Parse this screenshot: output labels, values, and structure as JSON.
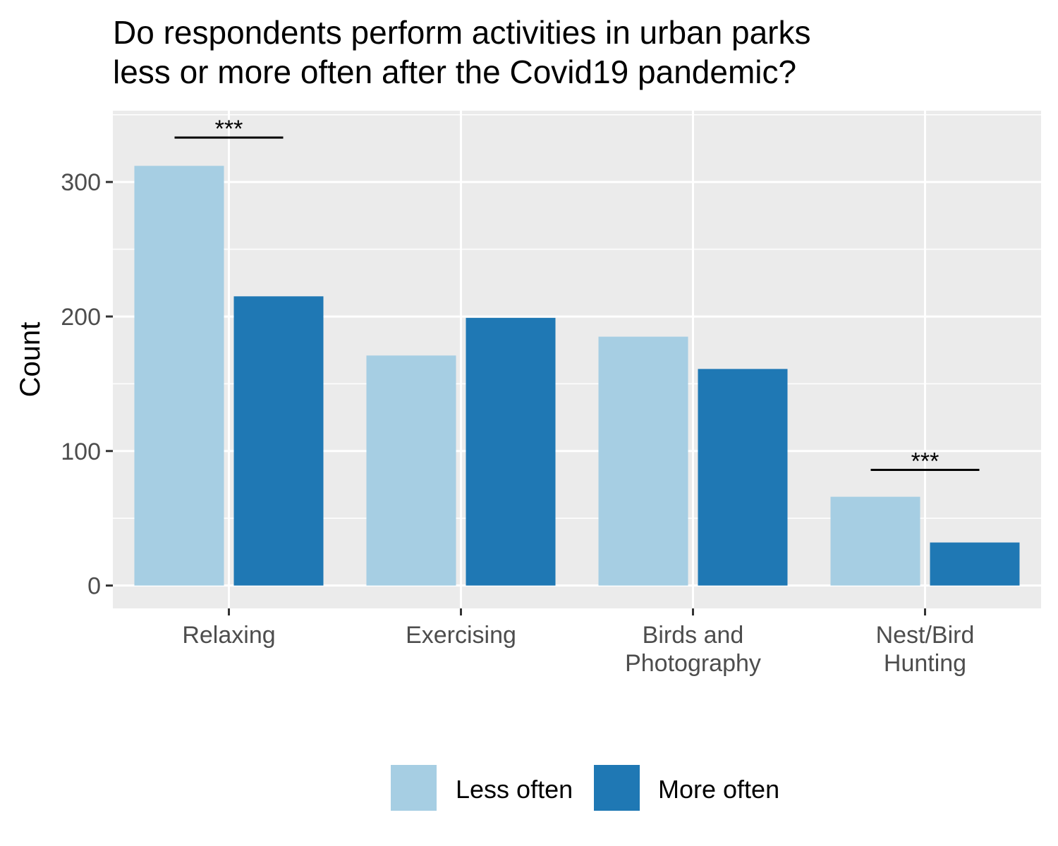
{
  "chart_data": {
    "type": "bar",
    "title": [
      "Do respondents perform activities in urban parks",
      "less or more often after the Covid19 pandemic?"
    ],
    "xlabel": "",
    "ylabel": "Count",
    "ylim": [
      -17,
      353
    ],
    "yticks": [
      0,
      100,
      200,
      300
    ],
    "grid": true,
    "legend_position": "bottom",
    "categories": [
      [
        "Relaxing"
      ],
      [
        "Exercising"
      ],
      [
        "Birds and",
        "Photography"
      ],
      [
        "Nest/Bird",
        "Hunting"
      ]
    ],
    "series": [
      {
        "name": "Less often",
        "color": "#a6cee3",
        "values": [
          312,
          171,
          185,
          66
        ]
      },
      {
        "name": "More often",
        "color": "#1f78b4",
        "values": [
          215,
          199,
          161,
          32
        ]
      }
    ],
    "annotations": [
      {
        "category_index": 0,
        "y": 333,
        "label": "***"
      },
      {
        "category_index": 3,
        "y": 86,
        "label": "***"
      }
    ]
  }
}
